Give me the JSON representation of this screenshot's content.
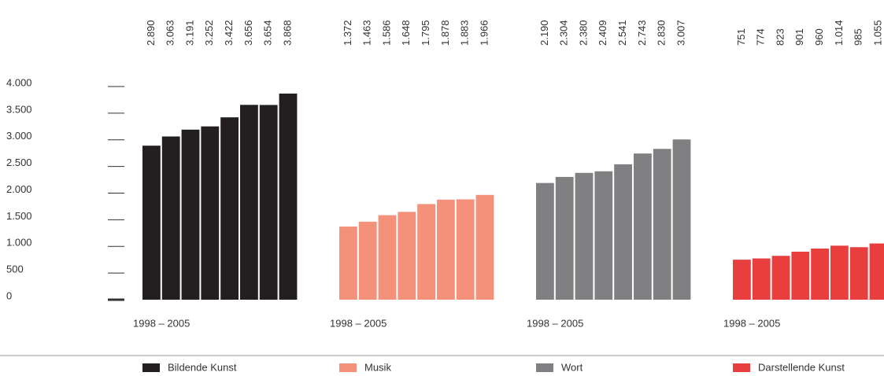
{
  "chart_data": {
    "type": "bar",
    "x_label": "1998 – 2005",
    "ylim": [
      0,
      4000
    ],
    "yticks": [
      0,
      500,
      {
        "value": 1000,
        "label": "1.000"
      },
      {
        "value": 1500,
        "label": "1.500"
      },
      {
        "value": 2000,
        "label": "2.000"
      },
      {
        "value": 2500,
        "label": "2.500"
      },
      {
        "value": 3000,
        "label": "3.000"
      },
      {
        "value": 3500,
        "label": "3.500"
      },
      {
        "value": 4000,
        "label": "4.000"
      }
    ],
    "series": [
      {
        "name": "Bildende Kunst",
        "color": "#231f20",
        "values": [
          2890,
          3063,
          3191,
          3252,
          3422,
          3656,
          3654,
          3868
        ],
        "value_labels": [
          "2.890",
          "3.063",
          "3.191",
          "3.252",
          "3.422",
          "3.656",
          "3.654",
          "3.868"
        ]
      },
      {
        "name": "Musik",
        "color": "#f4917a",
        "values": [
          1372,
          1463,
          1586,
          1648,
          1795,
          1878,
          1883,
          1966
        ],
        "value_labels": [
          "1.372",
          "1.463",
          "1.586",
          "1.648",
          "1.795",
          "1.878",
          "1.883",
          "1.966"
        ]
      },
      {
        "name": "Wort",
        "color": "#808083",
        "values": [
          2190,
          2304,
          2380,
          2409,
          2541,
          2743,
          2830,
          3007
        ],
        "value_labels": [
          "2.190",
          "2.304",
          "2.380",
          "2.409",
          "2.541",
          "2.743",
          "2.830",
          "3.007"
        ]
      },
      {
        "name": "Darstellende Kunst",
        "color": "#e83e3e",
        "values": [
          751,
          774,
          823,
          901,
          960,
          1014,
          985,
          1055
        ],
        "value_labels": [
          "751",
          "774",
          "823",
          "901",
          "960",
          "1.014",
          "985",
          "1.055"
        ]
      }
    ]
  }
}
